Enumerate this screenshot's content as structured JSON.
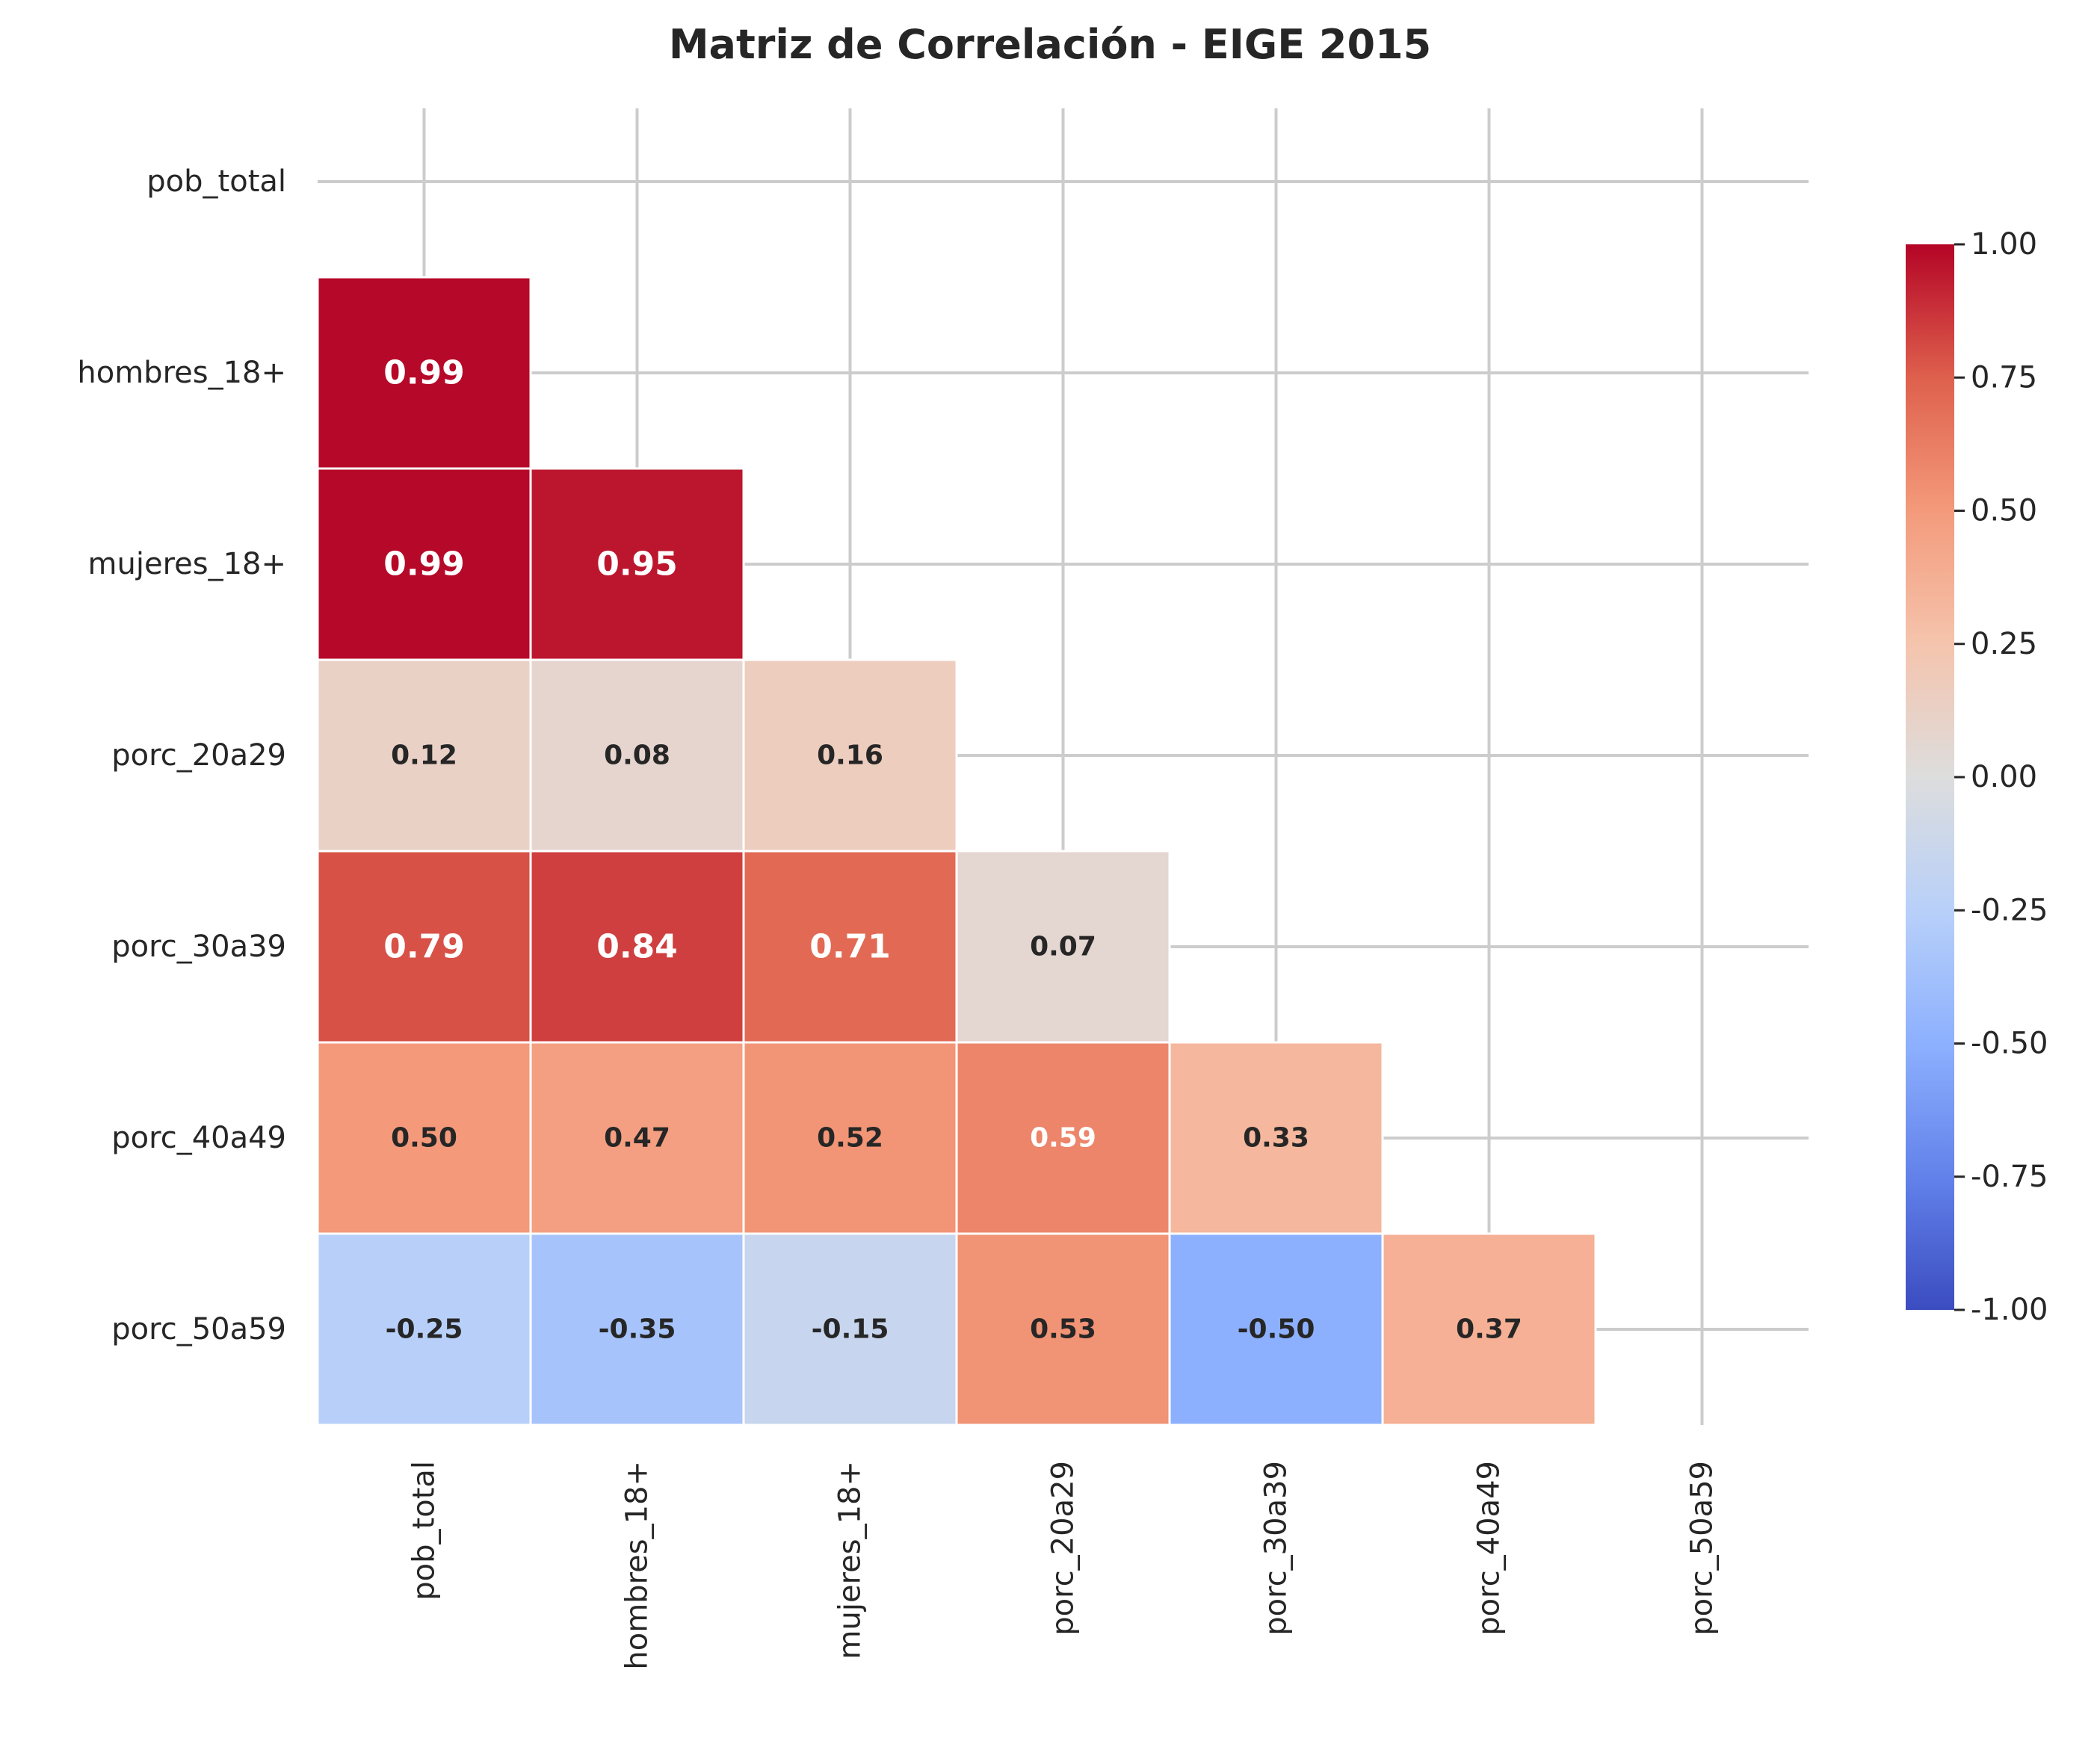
{
  "chart_data": {
    "type": "heatmap",
    "title": "Matriz de Correlación - EIGE 2015",
    "variables": [
      "pob_total",
      "hombres_18+",
      "mujeres_18+",
      "porc_20a29",
      "porc_30a39",
      "porc_40a49",
      "porc_50a59"
    ],
    "mask": "upper-triangle-and-diagonal",
    "cells": [
      {
        "row": 1,
        "col": 0,
        "value": 0.99,
        "label": "0.99"
      },
      {
        "row": 2,
        "col": 0,
        "value": 0.99,
        "label": "0.99"
      },
      {
        "row": 2,
        "col": 1,
        "value": 0.95,
        "label": "0.95"
      },
      {
        "row": 3,
        "col": 0,
        "value": 0.12,
        "label": "0.12"
      },
      {
        "row": 3,
        "col": 1,
        "value": 0.08,
        "label": "0.08"
      },
      {
        "row": 3,
        "col": 2,
        "value": 0.16,
        "label": "0.16"
      },
      {
        "row": 4,
        "col": 0,
        "value": 0.79,
        "label": "0.79"
      },
      {
        "row": 4,
        "col": 1,
        "value": 0.84,
        "label": "0.84"
      },
      {
        "row": 4,
        "col": 2,
        "value": 0.71,
        "label": "0.71"
      },
      {
        "row": 4,
        "col": 3,
        "value": 0.07,
        "label": "0.07"
      },
      {
        "row": 5,
        "col": 0,
        "value": 0.5,
        "label": "0.50"
      },
      {
        "row": 5,
        "col": 1,
        "value": 0.47,
        "label": "0.47"
      },
      {
        "row": 5,
        "col": 2,
        "value": 0.52,
        "label": "0.52"
      },
      {
        "row": 5,
        "col": 3,
        "value": 0.59,
        "label": "0.59"
      },
      {
        "row": 5,
        "col": 4,
        "value": 0.33,
        "label": "0.33"
      },
      {
        "row": 6,
        "col": 0,
        "value": -0.25,
        "label": "-0.25"
      },
      {
        "row": 6,
        "col": 1,
        "value": -0.35,
        "label": "-0.35"
      },
      {
        "row": 6,
        "col": 2,
        "value": -0.15,
        "label": "-0.15"
      },
      {
        "row": 6,
        "col": 3,
        "value": 0.53,
        "label": "0.53"
      },
      {
        "row": 6,
        "col": 4,
        "value": -0.5,
        "label": "-0.50"
      },
      {
        "row": 6,
        "col": 5,
        "value": 0.37,
        "label": "0.37"
      }
    ],
    "colorbar": {
      "colormap": "coolwarm",
      "range": [
        -1,
        1
      ],
      "ticks": [
        1.0,
        0.75,
        0.5,
        0.25,
        0.0,
        -0.25,
        -0.5,
        -0.75,
        -1.0
      ],
      "tick_labels": [
        "1.00",
        "0.75",
        "0.50",
        "0.25",
        "0.00",
        "-0.25",
        "-0.50",
        "-0.75",
        "-1.00"
      ],
      "placement": "right"
    },
    "grid": true,
    "colors": {
      "grid": "#cccccc",
      "text": "#262626",
      "cell_border": "#ffffff"
    }
  }
}
